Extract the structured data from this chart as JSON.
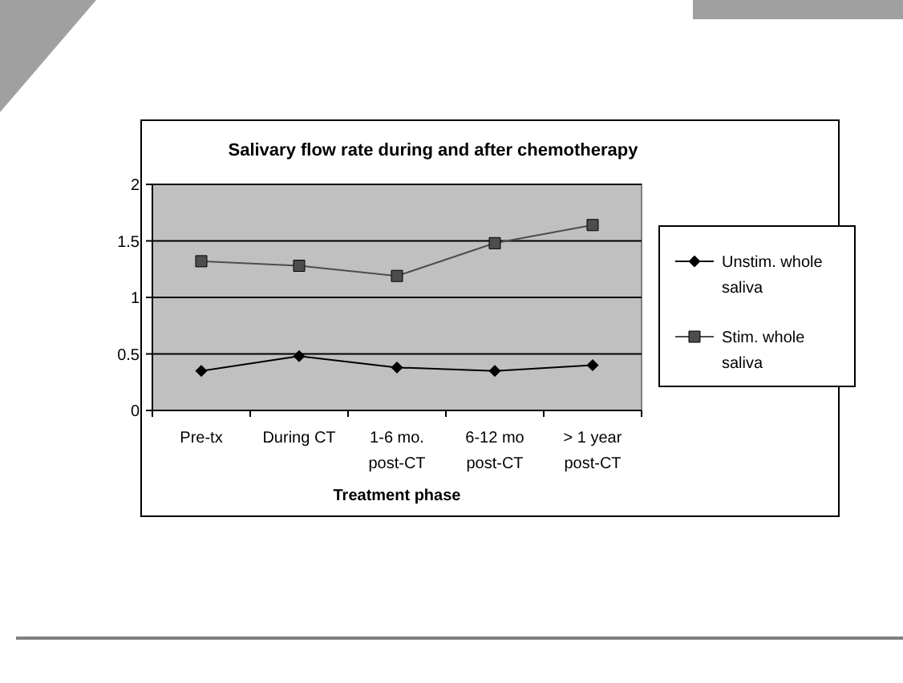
{
  "chart_data": {
    "type": "line",
    "title": "Salivary flow rate during and after chemotherapy",
    "xlabel": "Treatment phase",
    "categories": [
      "Pre-tx",
      "During CT",
      "1-6 mo. post-CT",
      "6-12 mo post-CT",
      "> 1 year post-CT"
    ],
    "series": [
      {
        "name": "Unstim. whole saliva",
        "color": "#000000",
        "marker": "diamond",
        "values": [
          0.35,
          0.48,
          0.38,
          0.35,
          0.4
        ]
      },
      {
        "name": "Stim. whole saliva",
        "color": "#4d4d4d",
        "marker": "square",
        "values": [
          1.32,
          1.28,
          1.19,
          1.48,
          1.64
        ]
      }
    ],
    "ylim": [
      0,
      2
    ],
    "yticks": [
      0,
      0.5,
      1,
      1.5,
      2
    ],
    "grid": "y",
    "legend": "right",
    "line_style": "solid"
  }
}
